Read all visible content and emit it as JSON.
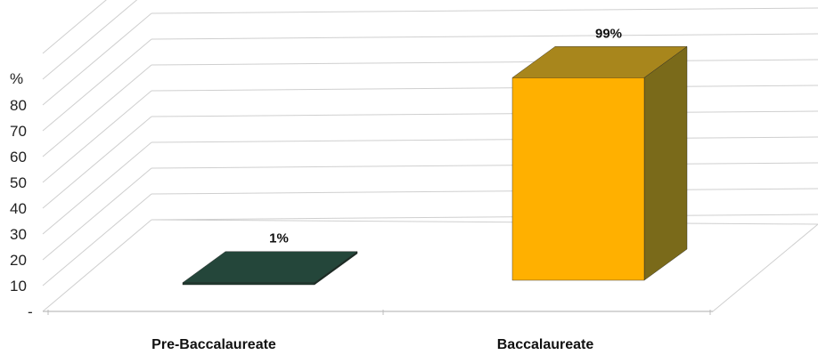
{
  "chart_data": {
    "type": "bar",
    "style": "3d",
    "categories": [
      "Pre-Baccalaureate",
      "Baccalaureate"
    ],
    "values": [
      1,
      99
    ],
    "data_labels": [
      "1%",
      "99%"
    ],
    "ylabel": "%",
    "y_ticks": [
      10,
      20,
      30,
      40,
      50,
      60,
      70,
      80
    ],
    "ylim": [
      0,
      100
    ],
    "grid": true,
    "legend": "none",
    "colors": {
      "bar_front": [
        "#1f3a2e",
        "#ffb000"
      ],
      "bar_side": [
        "#1a2d24",
        "#7a6a1a"
      ],
      "bar_top": [
        "#24463a",
        "#a8861c"
      ],
      "grid": "#cfcfcf",
      "axis": "#bdbdbd"
    }
  }
}
